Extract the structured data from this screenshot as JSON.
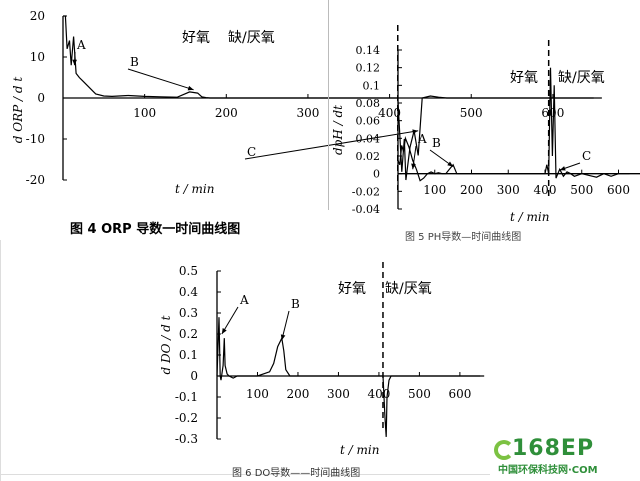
{
  "captions": {
    "fig4": "图 4   ORP 导数一时间曲线图",
    "fig5": "图 5   PH导数—时间曲线图",
    "fig6": "图 6   DO导数——时间曲线图"
  },
  "logo": {
    "main": "168EP",
    "sub": "中国环保科技网·COM",
    "colors": [
      "#2f8f3a",
      "#7cc242"
    ]
  },
  "chart_data": [
    {
      "type": "line",
      "id": "orp",
      "ylabel": "d ORP / d t",
      "xlabel": "t / min",
      "xlim": [
        0,
        660
      ],
      "ylim": [
        -20,
        20
      ],
      "x_ticks": [
        "100",
        "200",
        "300",
        "400",
        "500",
        "600"
      ],
      "y_ticks": [
        "20",
        "10",
        "0",
        "-10",
        "-20"
      ],
      "phase_divider_x": 410,
      "phase_labels": [
        "好氧",
        "缺/厌氧"
      ],
      "annotations": [
        "A",
        "B",
        "C"
      ],
      "series": [
        {
          "x": [
            0,
            3,
            5,
            8,
            10,
            13,
            16,
            20,
            25,
            30,
            40,
            50,
            60,
            80,
            100,
            120,
            140,
            155,
            165,
            170,
            175,
            180,
            200,
            250,
            300,
            350,
            400,
            410,
            415,
            418,
            420,
            425,
            430,
            435,
            440,
            450,
            460,
            470,
            480,
            500,
            550,
            600,
            650
          ],
          "y": [
            20,
            20,
            12,
            14,
            8,
            15,
            6,
            5,
            4,
            3,
            1,
            0.5,
            0.4,
            0.6,
            0.4,
            0.3,
            0.2,
            1.5,
            1.2,
            0.3,
            0.1,
            0,
            0,
            0,
            0,
            0,
            0,
            0,
            -18,
            -10,
            -20,
            -12,
            -8,
            -14,
            0,
            0.5,
            0.2,
            0,
            0,
            0,
            0,
            0,
            0
          ]
        }
      ]
    },
    {
      "type": "line",
      "id": "ph",
      "ylabel": "dpH / dt",
      "xlabel": "t / min",
      "xlim": [
        0,
        660
      ],
      "ylim": [
        -0.04,
        0.14
      ],
      "x_ticks": [
        "100",
        "200",
        "300",
        "400",
        "500",
        "600"
      ],
      "y_ticks": [
        "0.14",
        "0.12",
        "0.1",
        "0.08",
        "0.06",
        "0.04",
        "0.02",
        "0",
        "-0.02",
        "-0.04"
      ],
      "phase_divider_x": 410,
      "phase_labels": [
        "好氧",
        "缺/厌氧"
      ],
      "annotations": [
        "A",
        "B",
        "C"
      ],
      "series": [
        {
          "x": [
            0,
            5,
            10,
            15,
            20,
            30,
            40,
            50,
            60,
            70,
            80,
            90,
            100,
            110,
            120,
            130,
            140,
            150,
            160,
            170,
            200,
            300,
            400,
            405,
            410,
            415,
            420,
            425,
            430,
            440,
            450,
            460,
            470,
            480,
            500,
            520,
            540,
            560,
            580,
            600,
            630
          ],
          "y": [
            0.015,
            0.01,
            0.032,
            0.025,
            0.04,
            0.03,
            0.015,
            0.005,
            -0.008,
            -0.005,
            0.0,
            0.002,
            0.0,
            0.001,
            0.0,
            0.0,
            0.005,
            0.01,
            0.0,
            0.0,
            0.0,
            0.0,
            0.0,
            0.01,
            0.0,
            0.12,
            0.02,
            0.1,
            -0.005,
            0.005,
            -0.003,
            0.002,
            0.0,
            -0.003,
            0.0,
            -0.002,
            -0.004,
            0.0,
            -0.003,
            0.0,
            0.0
          ]
        }
      ]
    },
    {
      "type": "line",
      "id": "do",
      "ylabel": "d DO / d t",
      "xlabel": "t / min",
      "xlim": [
        0,
        660
      ],
      "ylim": [
        -0.3,
        0.5
      ],
      "x_ticks": [
        "100",
        "200",
        "300",
        "400",
        "500",
        "600"
      ],
      "y_ticks": [
        "0.5",
        "0.4",
        "0.3",
        "0.2",
        "0.1",
        "0",
        "-0.1",
        "-0.2",
        "-0.3"
      ],
      "phase_divider_x": 410,
      "phase_labels": [
        "好氧",
        "缺/厌氧"
      ],
      "annotations": [
        "A",
        "B"
      ],
      "series": [
        {
          "x": [
            0,
            5,
            8,
            10,
            15,
            18,
            20,
            25,
            30,
            40,
            50,
            60,
            100,
            130,
            140,
            150,
            160,
            165,
            170,
            180,
            200,
            300,
            400,
            410,
            415,
            418,
            420,
            425,
            430,
            440,
            500,
            600,
            650
          ],
          "y": [
            0.0,
            0.28,
            0.0,
            -0.02,
            0.05,
            0.18,
            0.05,
            0.01,
            0.0,
            -0.01,
            0.0,
            0.0,
            0.0,
            0.02,
            0.06,
            0.14,
            0.18,
            0.12,
            0.03,
            0.0,
            0.0,
            0.0,
            0.0,
            0.0,
            -0.2,
            -0.29,
            -0.1,
            -0.02,
            0.0,
            0.0,
            0.0,
            0.0,
            0.0
          ]
        }
      ]
    }
  ]
}
